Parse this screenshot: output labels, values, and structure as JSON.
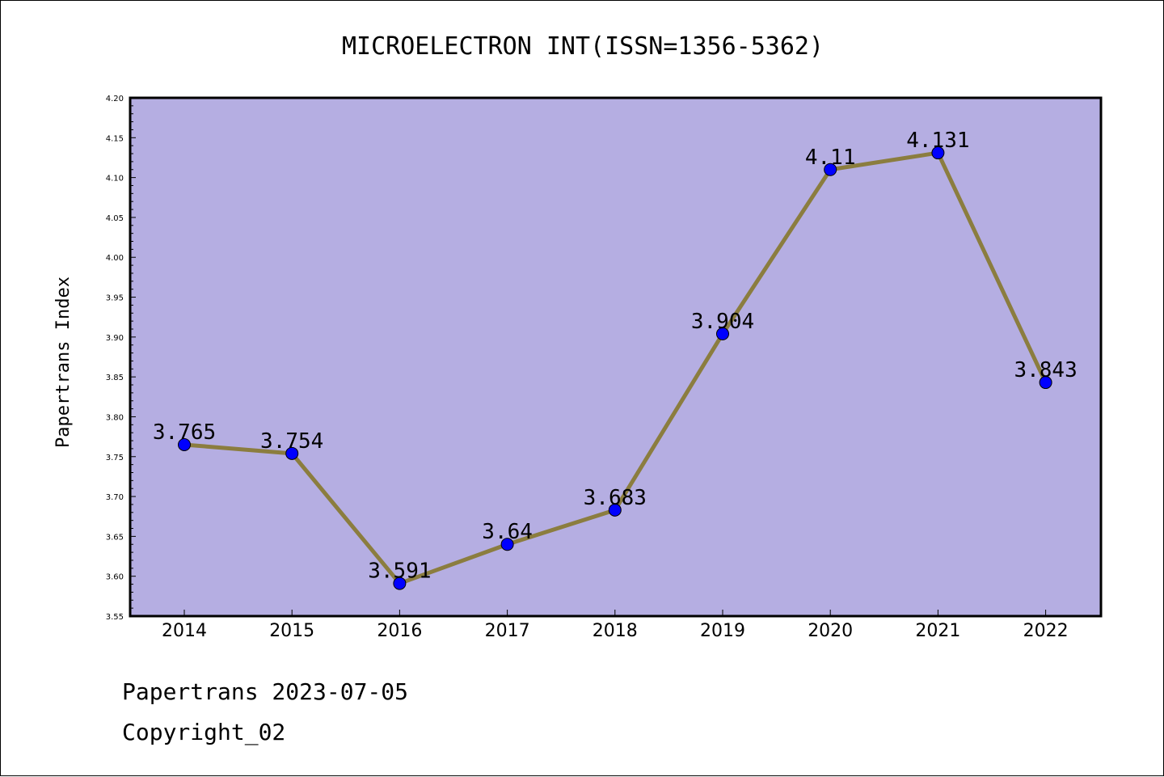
{
  "chart_data": {
    "type": "line",
    "title": "MICROELECTRON INT(ISSN=1356-5362)",
    "ylabel": "Papertrans Index",
    "xlabel": "",
    "categories": [
      "2014",
      "2015",
      "2016",
      "2017",
      "2018",
      "2019",
      "2020",
      "2021",
      "2022"
    ],
    "values": [
      3.765,
      3.754,
      3.591,
      3.64,
      3.683,
      3.904,
      4.11,
      4.131,
      3.843
    ],
    "data_labels": [
      "3.765",
      "3.754",
      "3.591",
      "3.64",
      "3.683",
      "3.904",
      "4.11",
      "4.131",
      "3.843"
    ],
    "ylim": [
      3.55,
      4.2
    ],
    "yticks": [
      "3.55",
      "3.60",
      "3.65",
      "3.70",
      "3.75",
      "3.80",
      "3.85",
      "3.90",
      "3.95",
      "4.00",
      "4.05",
      "4.10",
      "4.15",
      "4.20"
    ],
    "grid": false,
    "colors": {
      "plot_background": "#b5aee2",
      "line": "#8b7d3f",
      "marker": "#0000ff"
    }
  },
  "footer": {
    "line1": "Papertrans 2023-07-05",
    "line2": "Copyright_02"
  }
}
